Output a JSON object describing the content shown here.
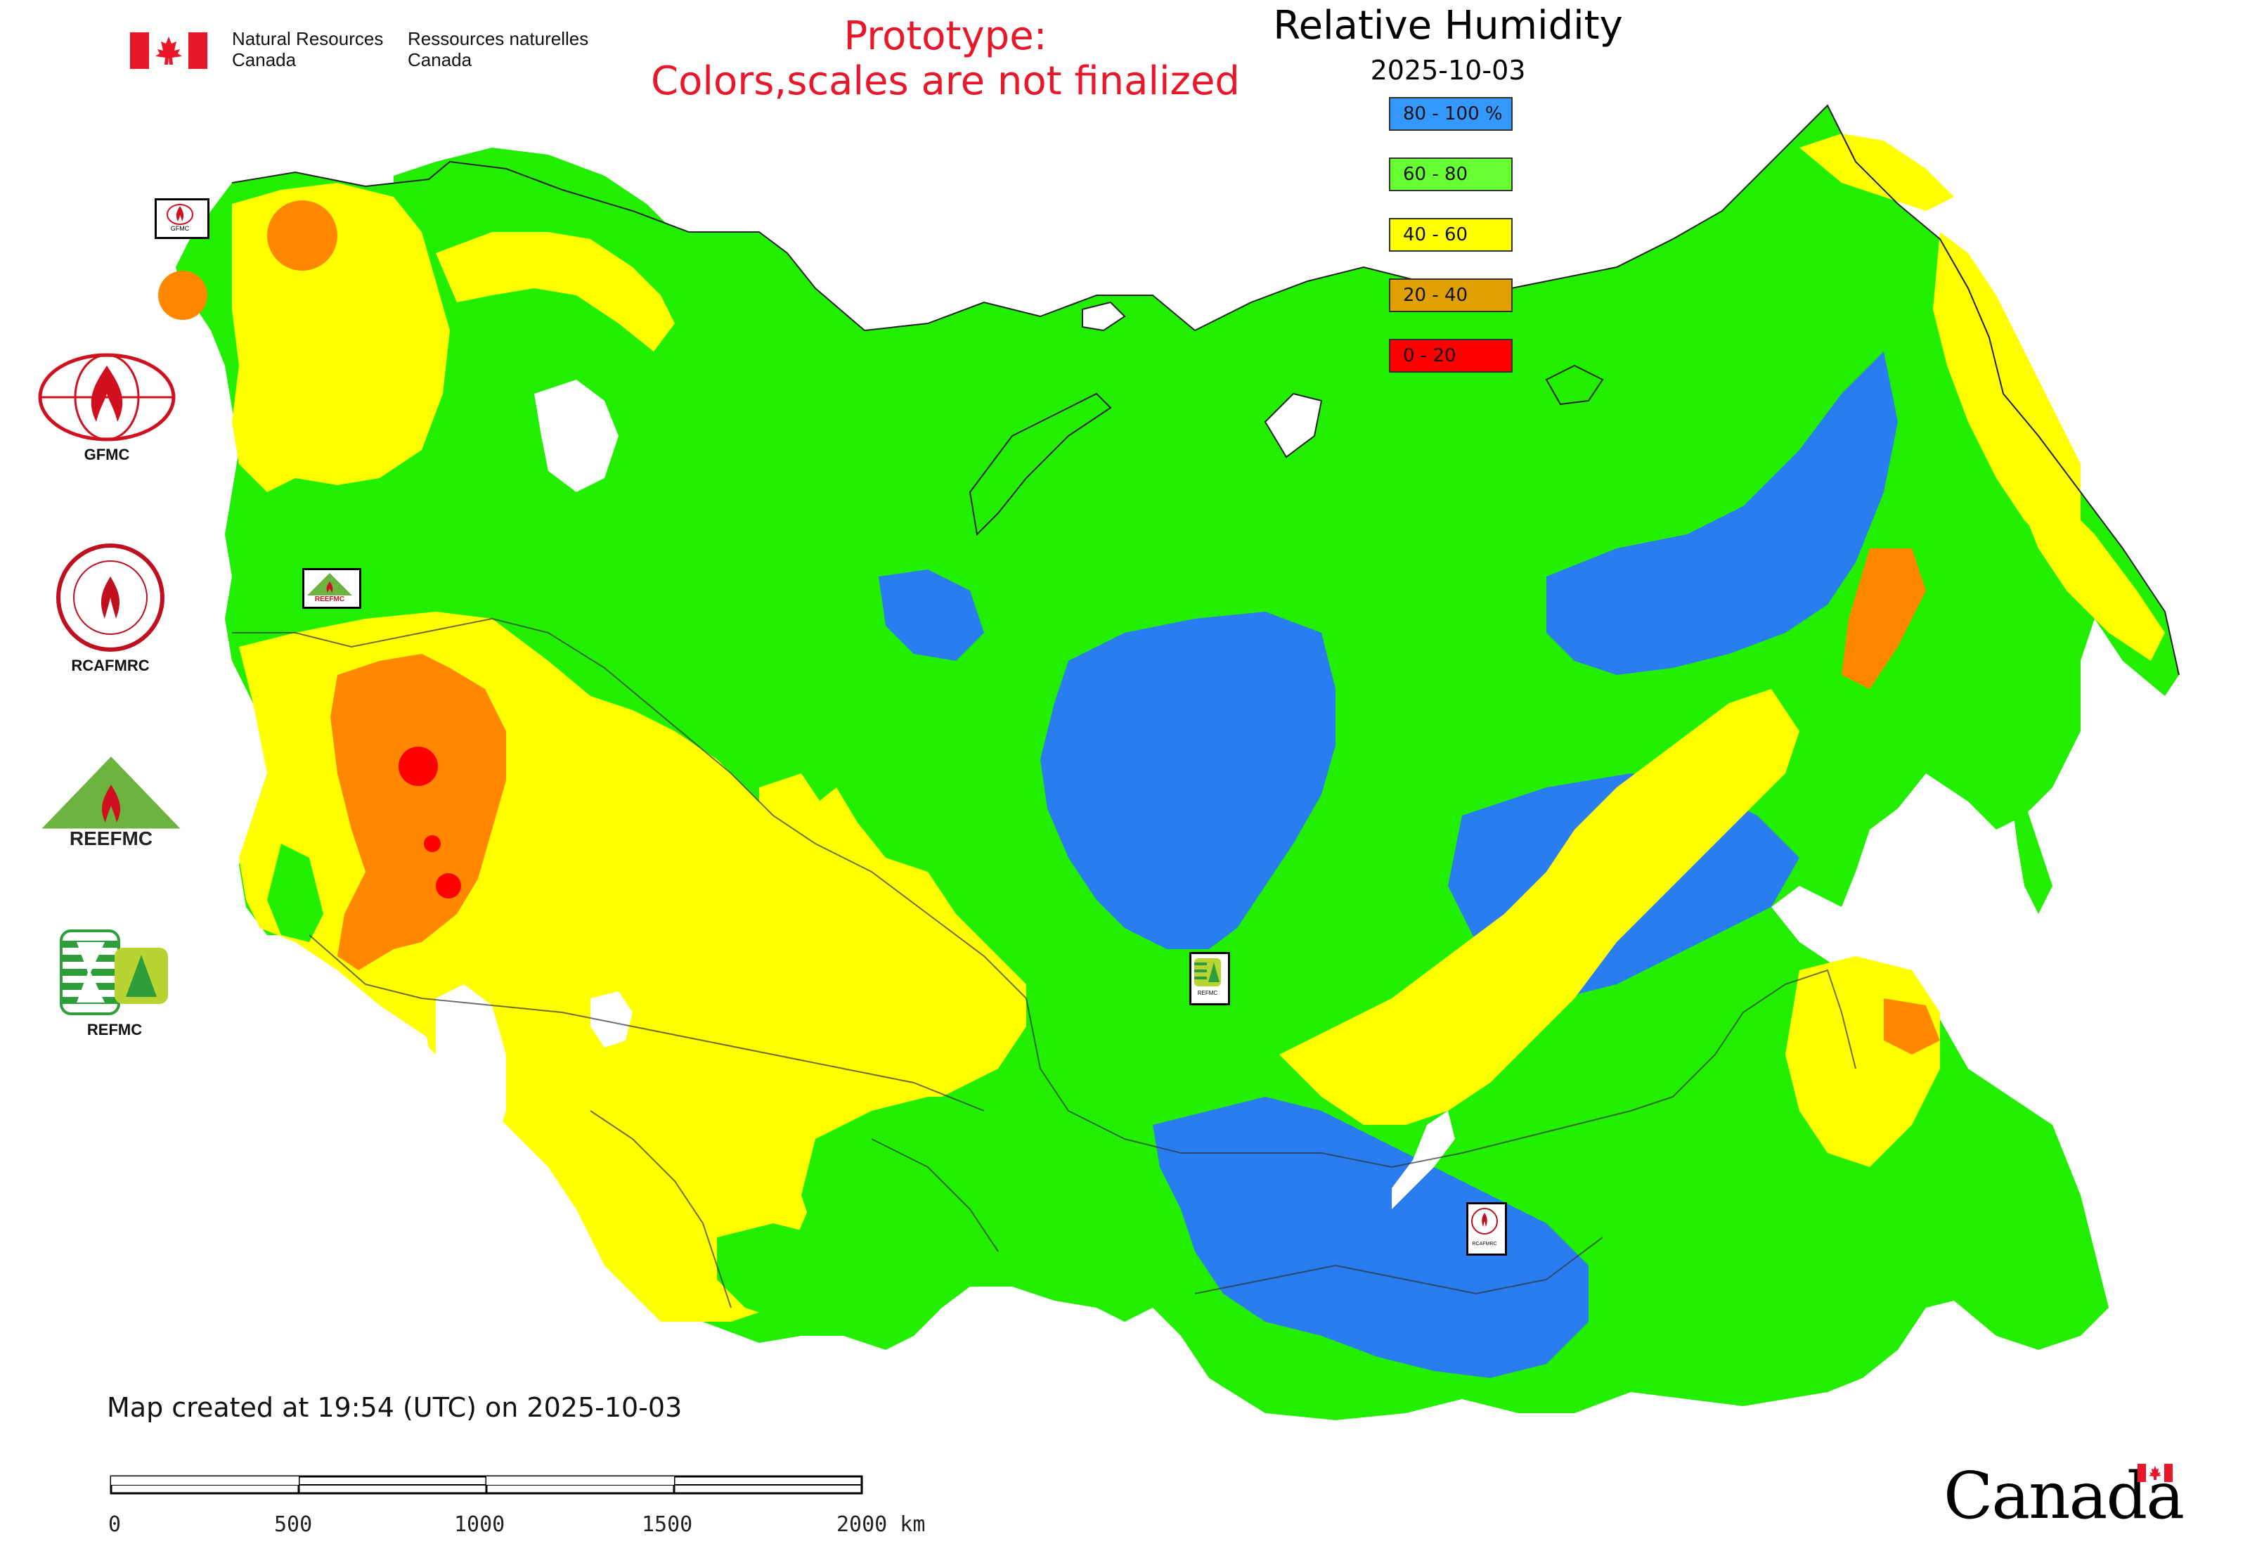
{
  "header": {
    "org_en": "Natural Resources\nCanada",
    "org_fr": "Ressources naturelles\nCanada",
    "prototype_line1": "Prototype:",
    "prototype_line2": "Colors,scales are not finalized"
  },
  "map": {
    "title": "Relative Humidity",
    "date": "2025-10-03",
    "legend": [
      {
        "label": "80 - 100 %",
        "color": "#3399ff"
      },
      {
        "label": "60 - 80",
        "color": "#66ff33"
      },
      {
        "label": "40 - 60",
        "color": "#ffff00"
      },
      {
        "label": "20 - 40",
        "color": "#e0a000"
      },
      {
        "label": "0 - 20",
        "color": "#ff0000"
      }
    ],
    "palette": {
      "blue": "#2a7df0",
      "green": "#22ee00",
      "yellow": "#ffff00",
      "orange": "#ff8800",
      "red": "#ff0000",
      "white": "#ffffff"
    }
  },
  "logos": [
    {
      "name": "gfmc-logo",
      "label": "GFMC"
    },
    {
      "name": "rcafmrc-logo",
      "label": "RCAFMRC"
    },
    {
      "name": "reefmc-logo",
      "label": "REEFMC"
    },
    {
      "name": "refmc-logo",
      "label": "REFMC"
    }
  ],
  "map_markers": [
    {
      "name": "gfmc-marker",
      "label": "GFMC"
    },
    {
      "name": "reefmc-marker",
      "label": "REEFMC"
    },
    {
      "name": "refmc-marker",
      "label": "REFMC"
    },
    {
      "name": "rcafmrc-marker",
      "label": "RCAFMRC"
    }
  ],
  "footer": {
    "created": "Map created at 19:54 (UTC) on 2025-10-03",
    "scale_labels": [
      "0",
      "500",
      "1000",
      "1500",
      "2000 km"
    ],
    "wordmark": "Canada"
  }
}
